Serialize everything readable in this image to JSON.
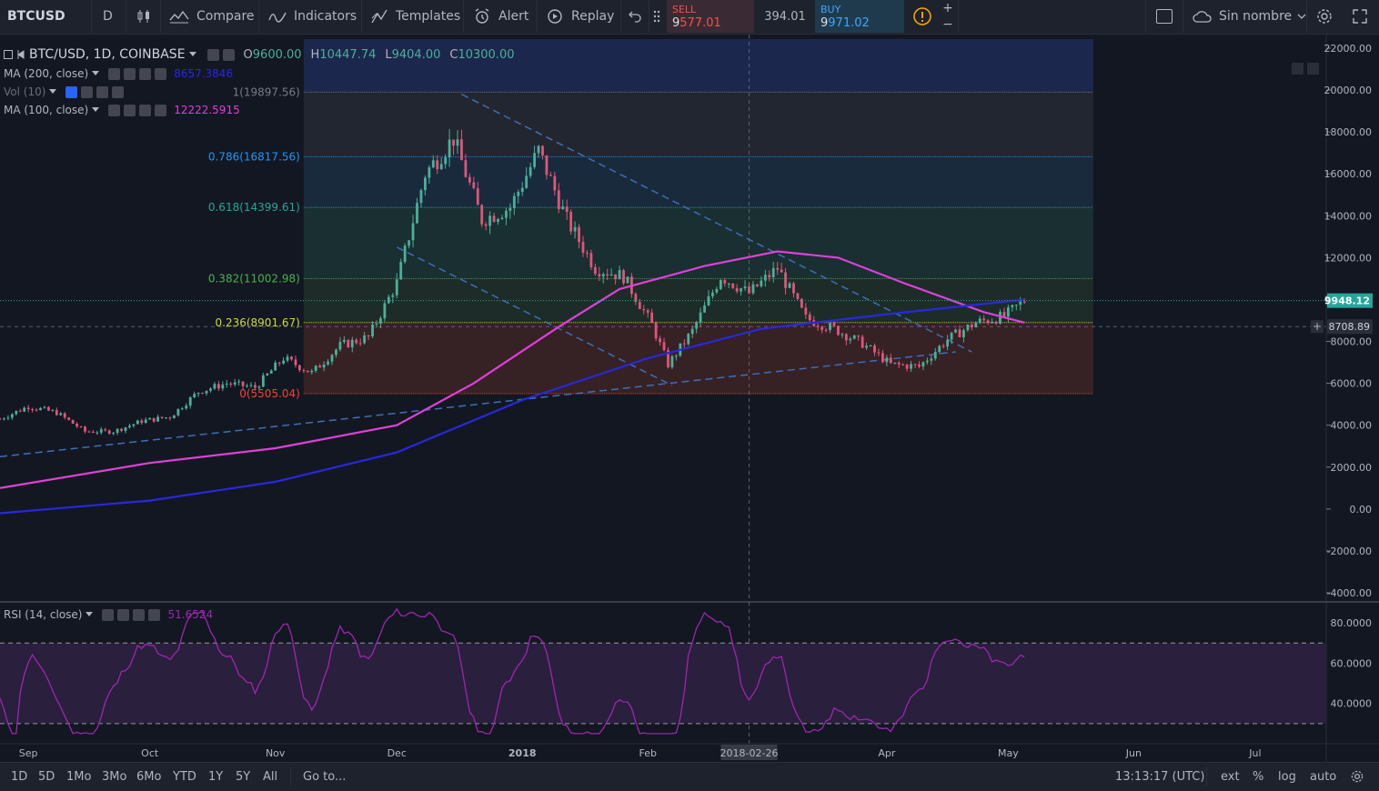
{
  "toolbar": {
    "symbol": "BTCUSD",
    "interval": "D",
    "compare": "Compare",
    "indicators": "Indicators",
    "templates": "Templates",
    "alert": "Alert",
    "replay": "Replay",
    "sell_label": "SELL",
    "sell_price_a": "9",
    "sell_price_b": "577.01",
    "spread": "394.01",
    "buy_label": "BUY",
    "buy_price_a": "9",
    "buy_price_b": "971.02",
    "layout_name": "Sin nombre"
  },
  "legend": {
    "main": "BTC/USD, 1D, COINBASE",
    "o_label": "O",
    "o_val": "9600.00",
    "h_label": "H",
    "h_val": "10447.74",
    "l_label": "L",
    "l_val": "9404.00",
    "c_label": "C",
    "c_val": "10300.00",
    "ma200": "MA (200, close)",
    "ma200_val": "8657.3846",
    "vol": "Vol (10)",
    "ma100": "MA (100, close)",
    "ma100_val": "12222.5915",
    "rsi": "RSI (14, close)",
    "rsi_val": "51.6524"
  },
  "colors": {
    "up": "#4caf9a",
    "down": "#e0557a",
    "ma100": "#e040d8",
    "ma200": "#2828e0",
    "rsi": "#9c27b0",
    "price_badge": "#26a69a"
  },
  "chart_data": {
    "type": "candlestick",
    "symbol": "BTC/USD",
    "ylim": [
      -4000,
      22000
    ],
    "y_ticks": [
      "22000.00",
      "20000.00",
      "18000.00",
      "16000.00",
      "14000.00",
      "12000.00",
      "10000.00",
      "8000.00",
      "6000.00",
      "4000.00",
      "2000.00",
      "0.00",
      "-2000.00",
      "-4000.00"
    ],
    "x_ticks": [
      "Sep",
      "Oct",
      "Nov",
      "Dec",
      "2018",
      "Feb",
      "2018-02-26",
      "Apr",
      "May",
      "Jun",
      "Jul"
    ],
    "last_price": "9948.12",
    "crosshair_price": "8708.89",
    "crosshair_date": "2018-02-26",
    "fib_levels": [
      {
        "label": "1(19897.56)",
        "value": 19897.56
      },
      {
        "label": "0.786(16817.56)",
        "value": 16817.56
      },
      {
        "label": "0.618(14399.61)",
        "value": 14399.61
      },
      {
        "label": "0.382(11002.98)",
        "value": 11002.98
      },
      {
        "label": "0.236(8901.67)",
        "value": 8901.67
      },
      {
        "label": "0(5505.04)",
        "value": 5505.04
      }
    ],
    "close_approx": [
      [
        "2017-08-25",
        4300
      ],
      [
        "2017-09-01",
        4900
      ],
      [
        "2017-09-08",
        4600
      ],
      [
        "2017-09-15",
        3700
      ],
      [
        "2017-09-22",
        3700
      ],
      [
        "2017-09-29",
        4200
      ],
      [
        "2017-10-06",
        4400
      ],
      [
        "2017-10-13",
        5600
      ],
      [
        "2017-10-20",
        6000
      ],
      [
        "2017-10-27",
        5800
      ],
      [
        "2017-11-03",
        7200
      ],
      [
        "2017-11-10",
        6500
      ],
      [
        "2017-11-17",
        7800
      ],
      [
        "2017-11-24",
        8200
      ],
      [
        "2017-12-01",
        10800
      ],
      [
        "2017-12-08",
        16000
      ],
      [
        "2017-12-15",
        17700
      ],
      [
        "2017-12-22",
        13800
      ],
      [
        "2017-12-29",
        14400
      ],
      [
        "2018-01-05",
        17100
      ],
      [
        "2018-01-12",
        13800
      ],
      [
        "2018-01-19",
        11500
      ],
      [
        "2018-01-26",
        11100
      ],
      [
        "2018-02-02",
        8800
      ],
      [
        "2018-02-06",
        6900
      ],
      [
        "2018-02-12",
        8500
      ],
      [
        "2018-02-19",
        11100
      ],
      [
        "2018-02-26",
        10300
      ],
      [
        "2018-03-05",
        11500
      ],
      [
        "2018-03-12",
        9100
      ],
      [
        "2018-03-19",
        8600
      ],
      [
        "2018-03-26",
        7900
      ],
      [
        "2018-04-02",
        6900
      ],
      [
        "2018-04-09",
        6800
      ],
      [
        "2018-04-16",
        8100
      ],
      [
        "2018-04-23",
        8900
      ],
      [
        "2018-04-30",
        9200
      ],
      [
        "2018-05-05",
        9950
      ]
    ],
    "rsi": {
      "levels": [
        70,
        30
      ],
      "y_ticks": [
        "80.0000",
        "60.0000",
        "40.0000"
      ],
      "last": 51.6524
    }
  },
  "bottom": {
    "ranges": [
      "1D",
      "5D",
      "1Mo",
      "3Mo",
      "6Mo",
      "YTD",
      "1Y",
      "5Y",
      "All"
    ],
    "goto": "Go to...",
    "time": "13:13:17 (UTC)",
    "ext": "ext",
    "percent": "%",
    "log": "log",
    "auto": "auto"
  }
}
